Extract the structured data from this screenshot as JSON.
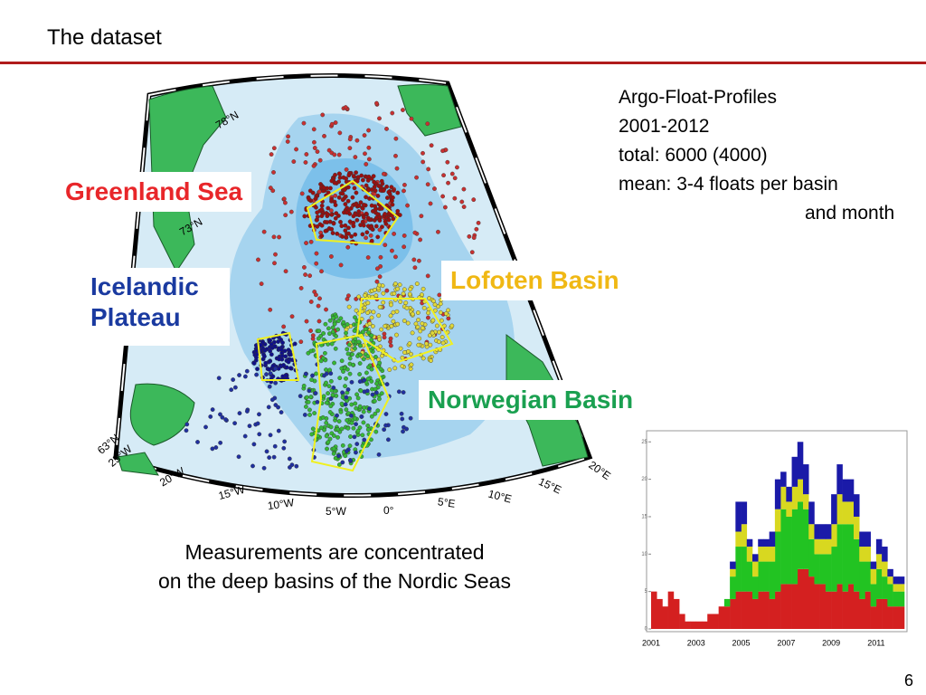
{
  "header": {
    "title": "The dataset"
  },
  "info": {
    "lines": [
      "Argo-Float-Profiles",
      "2001-2012",
      "total: 6000 (4000)",
      "mean: 3-4 floats per basin",
      "and month"
    ]
  },
  "map": {
    "basins": [
      "Greenland Sea",
      "Icelandic",
      "Plateau",
      "Lofoten Basin",
      "Norwegian Basin"
    ],
    "grid_labels": [
      "78°N",
      "73°N",
      "63°N",
      "25°W",
      "20°W",
      "15°W",
      "10°W",
      "5°W",
      "0°",
      "5°E",
      "10°E",
      "15°E",
      "20°E"
    ]
  },
  "caption": [
    "Measurements are concentrated",
    "on the deep basins of the Nordic Seas"
  ],
  "chart_data": {
    "type": "bar",
    "stacked": true,
    "categories": [
      "2001",
      null,
      null,
      null,
      null,
      null,
      null,
      null,
      "2003",
      null,
      null,
      null,
      null,
      null,
      null,
      null,
      "2005",
      null,
      null,
      null,
      null,
      null,
      null,
      null,
      "2007",
      null,
      null,
      null,
      null,
      null,
      null,
      null,
      "2009",
      null,
      null,
      null,
      null,
      null,
      null,
      null,
      "2011",
      null,
      null,
      null,
      null
    ],
    "series": [
      {
        "name": "red",
        "color": "#d42020",
        "values": [
          5,
          4,
          3,
          5,
          4,
          2,
          1,
          1,
          1,
          1,
          2,
          2,
          3,
          3,
          4,
          5,
          5,
          5,
          4,
          5,
          5,
          4,
          5,
          6,
          6,
          6,
          8,
          8,
          7,
          6,
          6,
          5,
          5,
          6,
          5,
          6,
          5,
          4,
          5,
          3,
          4,
          4,
          3,
          3,
          3
        ]
      },
      {
        "name": "green",
        "color": "#22c322",
        "values": [
          0,
          0,
          0,
          0,
          0,
          0,
          0,
          0,
          0,
          0,
          0,
          0,
          0,
          1,
          3,
          6,
          6,
          4,
          3,
          4,
          4,
          5,
          8,
          10,
          9,
          10,
          9,
          8,
          5,
          4,
          4,
          5,
          6,
          8,
          9,
          8,
          7,
          5,
          4,
          3,
          4,
          3,
          3,
          2,
          2
        ]
      },
      {
        "name": "yellow",
        "color": "#d8d820",
        "values": [
          0,
          0,
          0,
          0,
          0,
          0,
          0,
          0,
          0,
          0,
          0,
          0,
          0,
          0,
          1,
          2,
          3,
          2,
          2,
          2,
          2,
          2,
          3,
          3,
          2,
          3,
          3,
          2,
          2,
          2,
          2,
          2,
          3,
          4,
          3,
          3,
          3,
          2,
          2,
          2,
          2,
          2,
          1,
          1,
          1
        ]
      },
      {
        "name": "blue",
        "color": "#1a1aa8",
        "values": [
          0,
          0,
          0,
          0,
          0,
          0,
          0,
          0,
          0,
          0,
          0,
          0,
          0,
          0,
          1,
          4,
          3,
          1,
          1,
          1,
          1,
          2,
          4,
          2,
          2,
          4,
          5,
          4,
          3,
          2,
          2,
          2,
          4,
          4,
          3,
          3,
          3,
          2,
          2,
          1,
          2,
          2,
          1,
          1,
          1
        ]
      }
    ],
    "ylim": [
      0,
      26
    ],
    "yticks": [
      0,
      5,
      10,
      15,
      20,
      25
    ]
  },
  "footer": {
    "page": "6"
  }
}
